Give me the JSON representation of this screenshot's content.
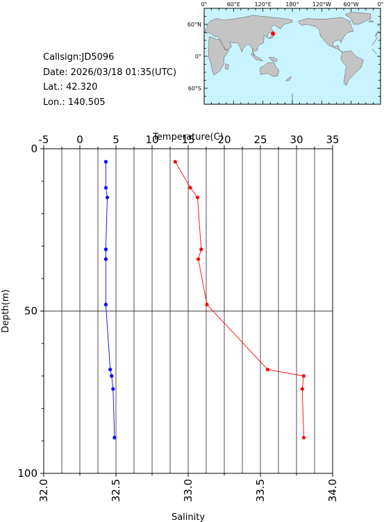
{
  "info": {
    "callsign": "Callsign:JD5096",
    "date": "Date:  2026/03/18 01:35(UTC)",
    "lat": "Lat.:   42.320",
    "lon": "Lon.:  140.505"
  },
  "map": {
    "lon_ticks": [
      "0°",
      "60°E",
      "120°E",
      "180°",
      "120°W",
      "60°W",
      "0°"
    ],
    "lat_ticks": [
      "60°N",
      "0°",
      "60°S"
    ],
    "colors": {
      "ocean": "#c9f3ff",
      "land": "#c4c4c4",
      "marker": "#ff0000"
    },
    "marker": {
      "lon": 140.505,
      "lat": 42.32
    }
  },
  "chart_data": {
    "type": "line",
    "ylabel": "Depth(m)",
    "ylim": [
      0,
      100
    ],
    "y_inverted": true,
    "yticks": [
      0,
      50,
      100
    ],
    "top_axis": {
      "label": "Temperature(C)",
      "lim": [
        -5,
        35
      ],
      "ticks": [
        -5,
        0,
        5,
        10,
        15,
        20,
        25,
        30,
        35
      ]
    },
    "bottom_axis": {
      "label": "Salinity",
      "lim": [
        32.0,
        34.0
      ],
      "ticks": [
        "32.0",
        "32.5",
        "33.0",
        "33.5",
        "34.0"
      ]
    },
    "grid": true,
    "series": [
      {
        "axis": "salinity",
        "color": "#0000ff",
        "depth": [
          4,
          12,
          15,
          31,
          34,
          48,
          68,
          70,
          74,
          89
        ],
        "salinity": [
          32.43,
          32.43,
          32.44,
          32.43,
          32.43,
          32.43,
          32.46,
          32.47,
          32.48,
          32.49
        ]
      },
      {
        "axis": "temperature",
        "color": "#ff0000",
        "depth": [
          4,
          12,
          15,
          31,
          34,
          48,
          68,
          70,
          74,
          89
        ],
        "temperature": [
          13.2,
          15.3,
          16.3,
          16.8,
          16.4,
          17.6,
          26.0,
          31.0,
          30.8,
          31.0
        ]
      }
    ]
  }
}
